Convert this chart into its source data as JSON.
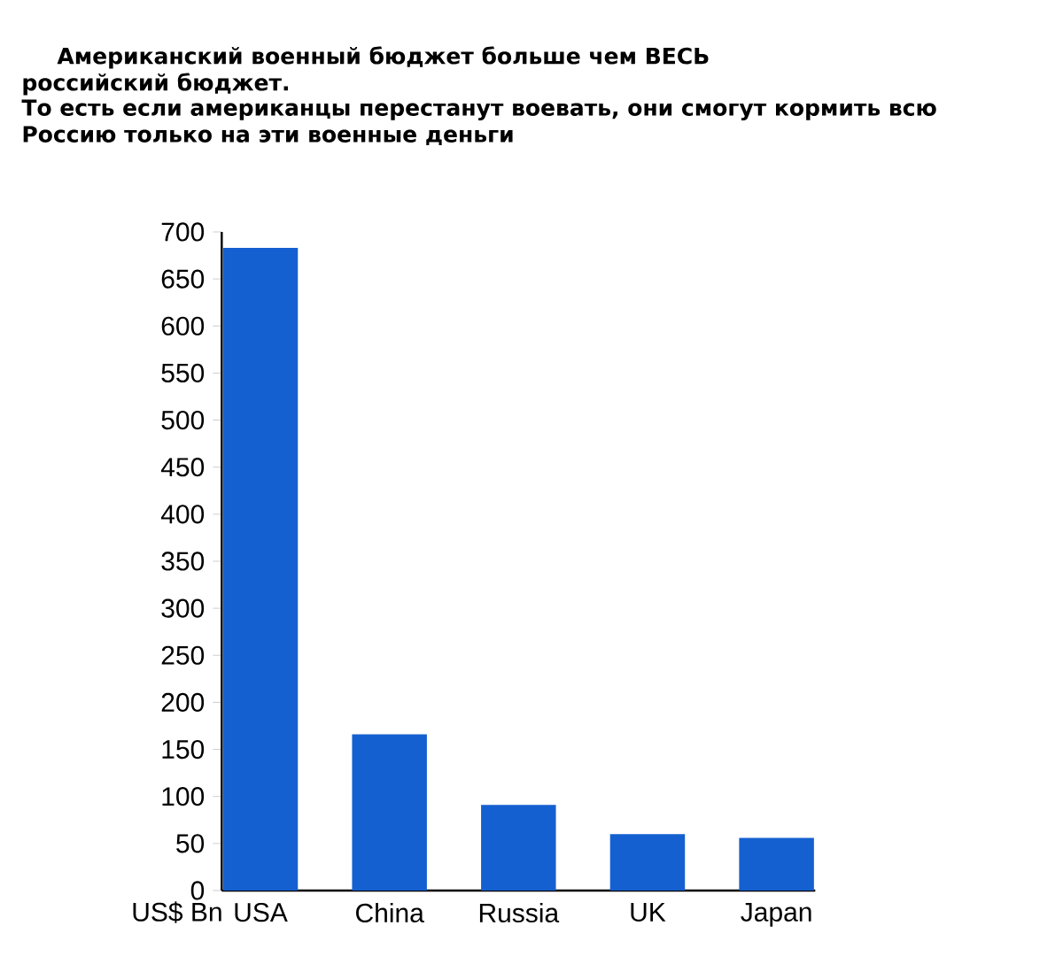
{
  "chart_data": {
    "type": "bar",
    "title": "Американский военный бюджет больше чем ВЕСЬ российский бюджет.",
    "subtitle": "То есть если американцы перестанут воевать, они смогут кормить всю Россию только на эти военные деньги",
    "ylabel": "US$ Bn",
    "categories": [
      "USA",
      "China",
      "Russia",
      "UK",
      "Japan"
    ],
    "values": [
      683,
      166,
      91,
      60,
      56
    ],
    "color": "#1560d0",
    "ylim": [
      0,
      700
    ],
    "yticks": [
      0,
      50,
      100,
      150,
      200,
      250,
      300,
      350,
      400,
      450,
      500,
      550,
      600,
      650,
      700
    ],
    "grid": false
  }
}
